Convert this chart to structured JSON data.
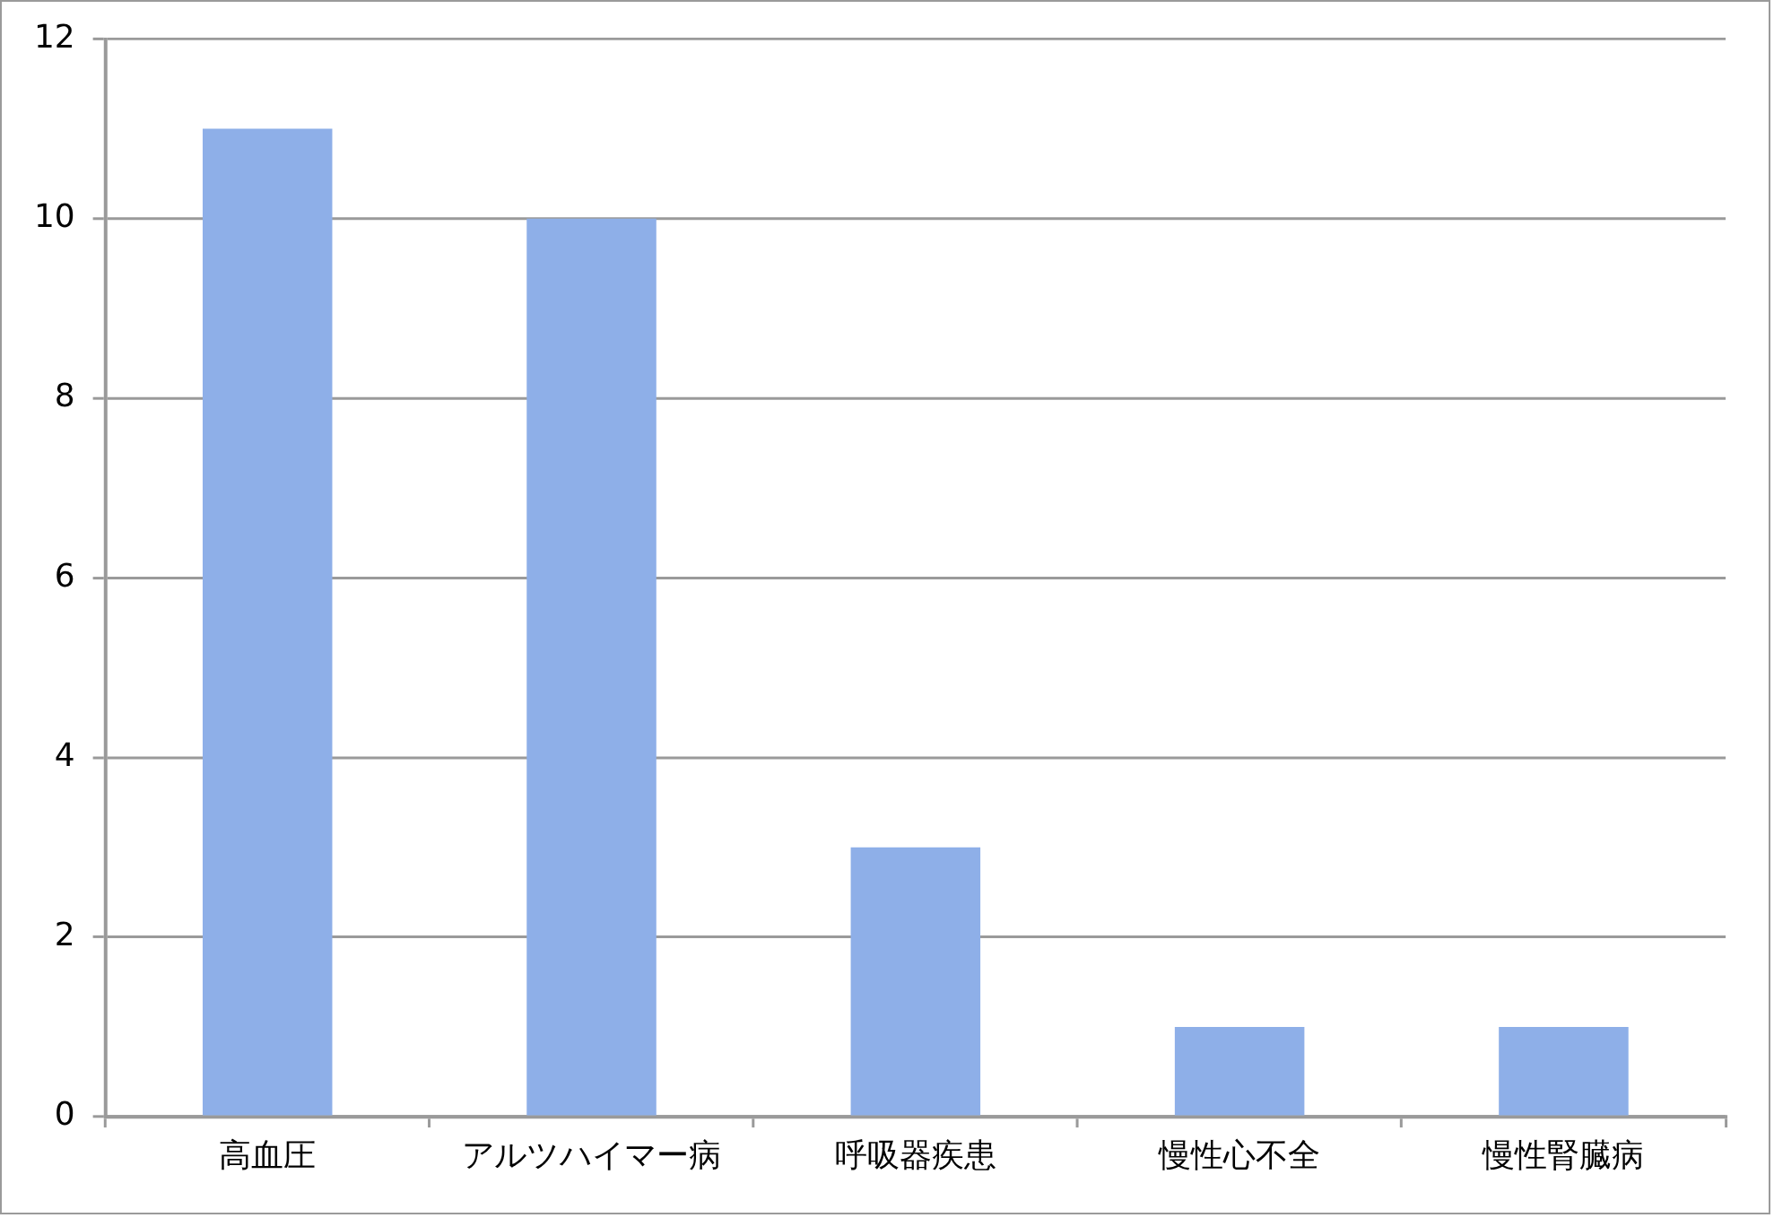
{
  "chart_data": {
    "type": "bar",
    "categories": [
      "高血圧",
      "アルツハイマー病",
      "呼吸器疾患",
      "慢性心不全",
      "慢性腎臓病"
    ],
    "values": [
      11,
      10,
      3,
      1,
      1
    ],
    "color": "#8eafe8",
    "ylim": [
      0,
      12
    ],
    "yticks": [
      0,
      2,
      4,
      6,
      8,
      10,
      12
    ],
    "grid": "y"
  }
}
